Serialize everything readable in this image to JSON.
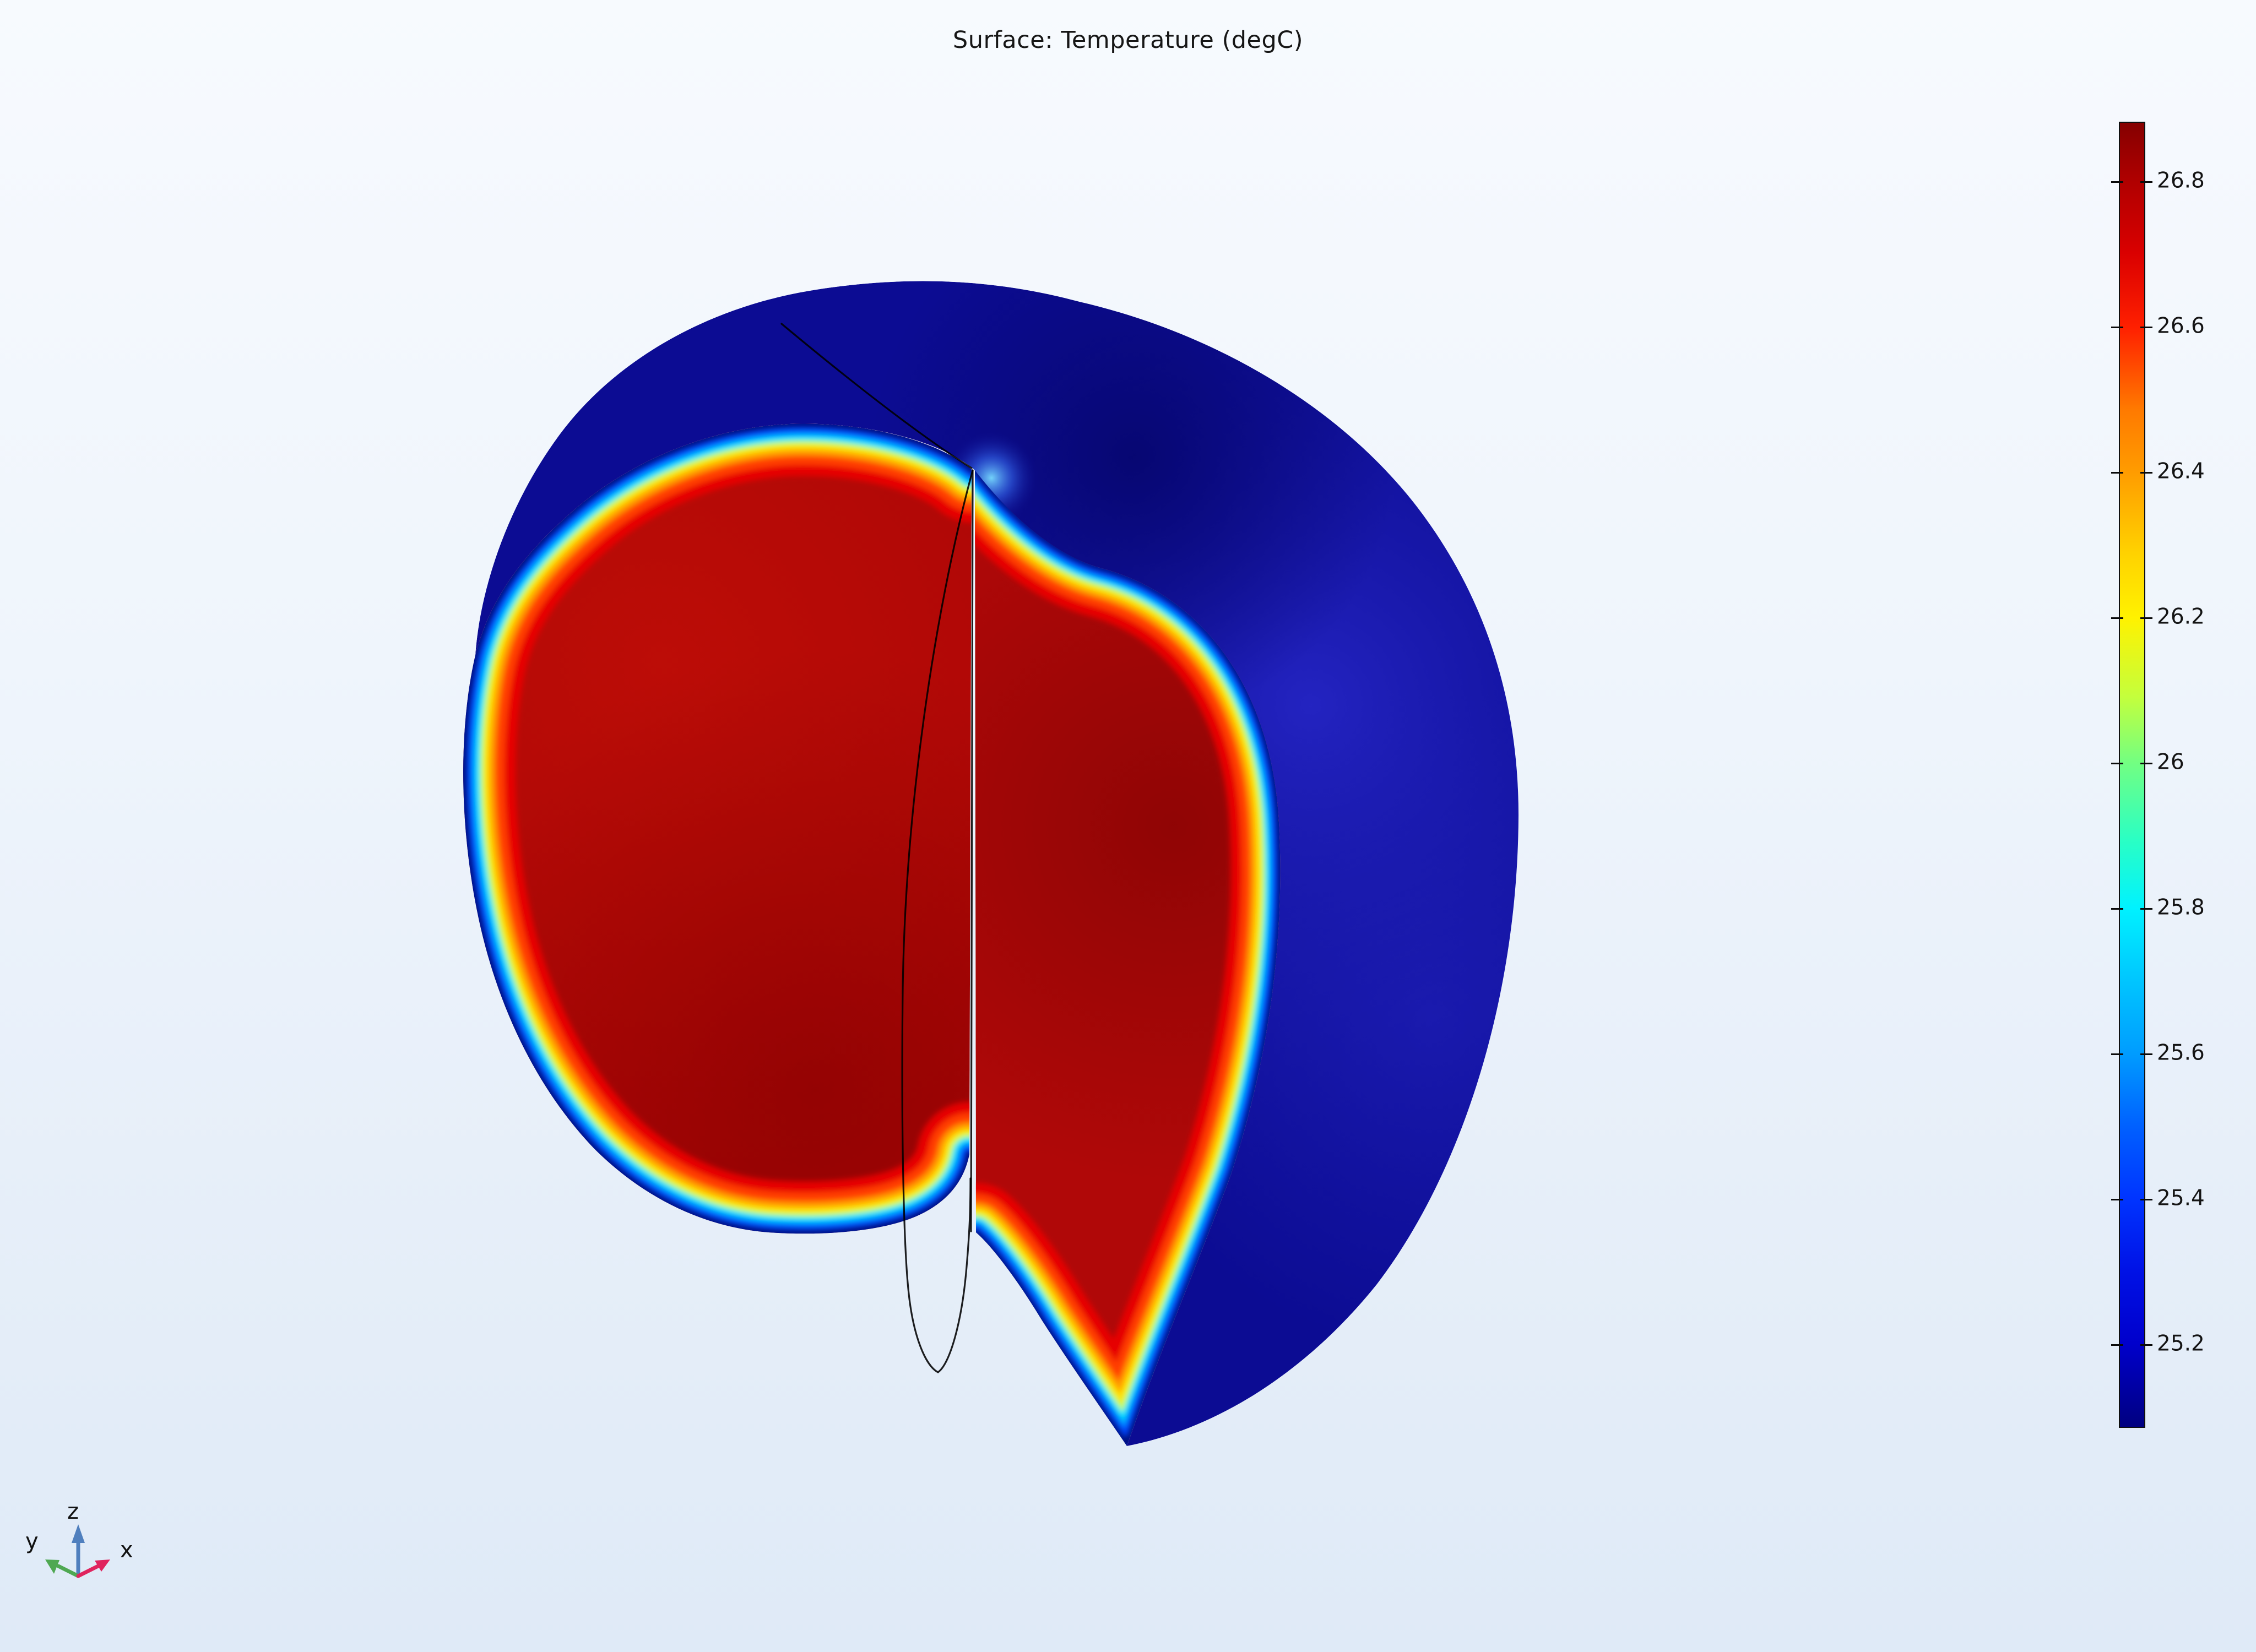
{
  "title": "Surface: Temperature (degC)",
  "colorbar": {
    "ticks": [
      "26.8",
      "26.6",
      "26.4",
      "26.2",
      "26",
      "25.8",
      "25.6",
      "25.4",
      "25.2"
    ],
    "top_color": "#850000",
    "bottom_color": "#000080",
    "position": "right"
  },
  "triad": {
    "x_label": "x",
    "y_label": "y",
    "z_label": "z",
    "x_color": "#e0245e",
    "y_color": "#4fa852",
    "z_color": "#4f7fbe"
  },
  "plot_colors": {
    "interior_hot": "#aa0505",
    "skin_cold": "#0c0c93",
    "background_top": "#f7fafe",
    "background_bottom": "#dfeaf7",
    "wireframe": "#000000"
  },
  "chart_data": {
    "type": "heatmap",
    "title": "Surface: Temperature (degC)",
    "render_style": "3D cutaway surface plot of an apple-shaped solid",
    "colormap": "rainbow (dark red high to dark blue low)",
    "colorbar_tick_values": [
      26.8,
      26.6,
      26.4,
      26.2,
      26.0,
      25.8,
      25.6,
      25.4,
      25.2
    ],
    "colorbar_range_approx": [
      25.09,
      26.88
    ],
    "units": "degC",
    "legend_position": "right",
    "annotations": [
      "interior cut faces at ~26.8 degC (dark red)",
      "outer skin surface at ~25.1-25.2 degC (dark blue)",
      "thin rainbow gradient boundary layer along cut-face edges",
      "black wireframe edges: cut seam over dome, core axis lines, core loop extending below fruit"
    ],
    "axis_triad": [
      "x",
      "y",
      "z"
    ]
  }
}
